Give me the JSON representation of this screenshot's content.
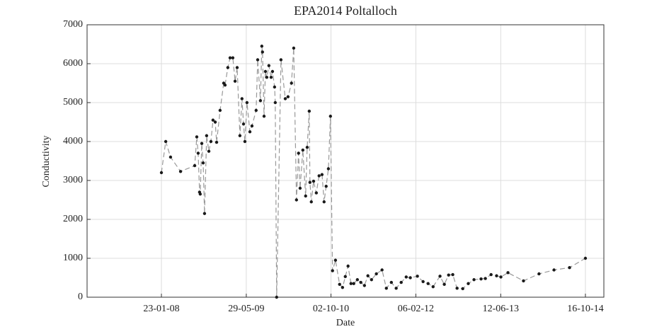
{
  "chart_data": {
    "type": "line",
    "title": "EPA2014 Poltalloch",
    "x_label": "Date",
    "y_label": "Conductivity",
    "x": [
      "23-01-08",
      "17-02-08",
      "16-03-08",
      "13-05-08",
      "03-08-08",
      "15-08-08",
      "23-08-08",
      "31-08-08",
      "04-09-08",
      "13-09-08",
      "21-09-08",
      "29-09-08",
      "11-10-08",
      "24-10-08",
      "05-11-08",
      "17-11-08",
      "30-11-08",
      "08-12-08",
      "28-12-08",
      "18-01-09",
      "26-01-09",
      "11-02-09",
      "24-02-09",
      "12-03-09",
      "25-03-09",
      "06-04-09",
      "22-04-09",
      "04-05-09",
      "13-05-09",
      "21-05-09",
      "02-06-09",
      "19-06-09",
      "01-07-09",
      "25-07-09",
      "03-08-09",
      "19-08-09",
      "27-08-09",
      "31-08-09",
      "09-09-09",
      "17-09-09",
      "25-09-09",
      "07-10-09",
      "20-10-09",
      "28-10-09",
      "09-11-09",
      "13-11-09",
      "21-11-09",
      "16-12-09",
      "10-01-10",
      "26-01-10",
      "15-02-10",
      "28-02-10",
      "16-03-10",
      "28-03-10",
      "06-04-10",
      "22-04-10",
      "08-05-10",
      "17-05-10",
      "29-05-10",
      "02-06-10",
      "10-06-10",
      "23-06-10",
      "09-07-10",
      "25-07-10",
      "11-08-10",
      "23-08-10",
      "04-09-10",
      "17-09-10",
      "29-09-10",
      "11-10-10",
      "28-10-10",
      "21-11-10",
      "08-12-10",
      "24-12-10",
      "09-01-11",
      "26-01-11",
      "11-02-11",
      "04-03-11",
      "24-03-11",
      "14-04-11",
      "04-05-11",
      "25-05-11",
      "22-06-11",
      "25-07-11",
      "19-08-11",
      "17-09-11",
      "15-10-11",
      "13-11-11",
      "12-12-11",
      "05-01-12",
      "15-02-12",
      "19-03-12",
      "17-04-12",
      "16-05-12",
      "25-06-12",
      "20-07-12",
      "14-08-12",
      "07-09-12",
      "02-10-12",
      "04-11-12",
      "06-12-12",
      "08-01-13",
      "18-02-13",
      "15-03-13",
      "17-04-13",
      "19-05-13",
      "13-06-13",
      "24-07-13",
      "22-10-13",
      "20-01-14",
      "17-04-14",
      "16-07-14",
      "16-10-14"
    ],
    "values": [
      3200,
      4000,
      3600,
      3230,
      3380,
      4120,
      3700,
      2700,
      2650,
      3950,
      3450,
      2150,
      4150,
      3750,
      4000,
      4550,
      4500,
      3980,
      4800,
      5500,
      5450,
      5900,
      6150,
      6150,
      5550,
      5900,
      4150,
      5100,
      4450,
      4000,
      5000,
      4250,
      4400,
      4800,
      6100,
      5050,
      6450,
      6300,
      4650,
      5800,
      5650,
      5950,
      5650,
      5800,
      5400,
      5000,
      0,
      6100,
      5100,
      5150,
      5500,
      6400,
      2500,
      3700,
      2800,
      3780,
      2600,
      3850,
      4780,
      2950,
      2450,
      2980,
      2680,
      3120,
      3150,
      2450,
      2850,
      3300,
      4650,
      680,
      950,
      330,
      250,
      530,
      800,
      350,
      350,
      450,
      380,
      300,
      550,
      450,
      600,
      700,
      230,
      380,
      230,
      380,
      520,
      500,
      540,
      400,
      350,
      270,
      540,
      330,
      570,
      580,
      230,
      220,
      350,
      450,
      470,
      480,
      580,
      550,
      520,
      630,
      420,
      600,
      700,
      760,
      1000
    ],
    "color": "#999999",
    "marker_color": "#1a1a1a",
    "xlim": [
      "18-11-06",
      "31-01-15"
    ],
    "xticks": [
      "23-01-08",
      "29-05-09",
      "02-10-10",
      "06-02-12",
      "12-06-13",
      "16-10-14"
    ],
    "ylim": [
      0,
      7000
    ],
    "yticks": [
      0,
      1000,
      2000,
      3000,
      4000,
      5000,
      6000,
      7000
    ],
    "grid": true
  }
}
